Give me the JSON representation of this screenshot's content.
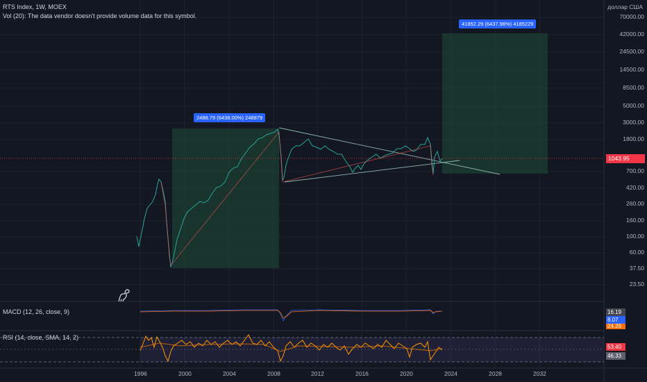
{
  "header": {
    "symbol_line": "RTS Index, 1W, MOEX",
    "volume_note": "Vol (20): The data vendor doesn't provide volume data for this symbol."
  },
  "currency": "доллар США",
  "price_axis": [
    "70000.00",
    "42000.00",
    "24500.00",
    "14500.00",
    "8500.00",
    "5000.00",
    "3000.00",
    "1800.00",
    "1043.95",
    "700.00",
    "420.00",
    "260.00",
    "160.00",
    "100.00",
    "60.00",
    "37.50",
    "23.50"
  ],
  "last_price": "1043.95",
  "time_axis": [
    "1996",
    "2000",
    "2004",
    "2008",
    "2012",
    "2016",
    "2020",
    "2024",
    "2028",
    "2032"
  ],
  "measure_1": "2488.79 (6438.00%) 248879",
  "measure_2": "41852.29 (6437.98%) 4185229",
  "macd": {
    "label": "MACD (12, 26, close, 9)",
    "v1": "16.19",
    "v2": "8.07",
    "v3": "24.26"
  },
  "rsi": {
    "label": "RSI (14, close, SMA, 14, 2)",
    "v1": "53.40",
    "v2": "46.33"
  },
  "colors": {
    "bg": "#131722",
    "up": "#26a69a",
    "down": "#ef5350",
    "box": "#1e4d34",
    "badge": "#2962ff",
    "rsi": "#ff9800",
    "rsi_band": "#7e57c2"
  },
  "icons": {
    "tv_logo": "dino-icon"
  }
}
